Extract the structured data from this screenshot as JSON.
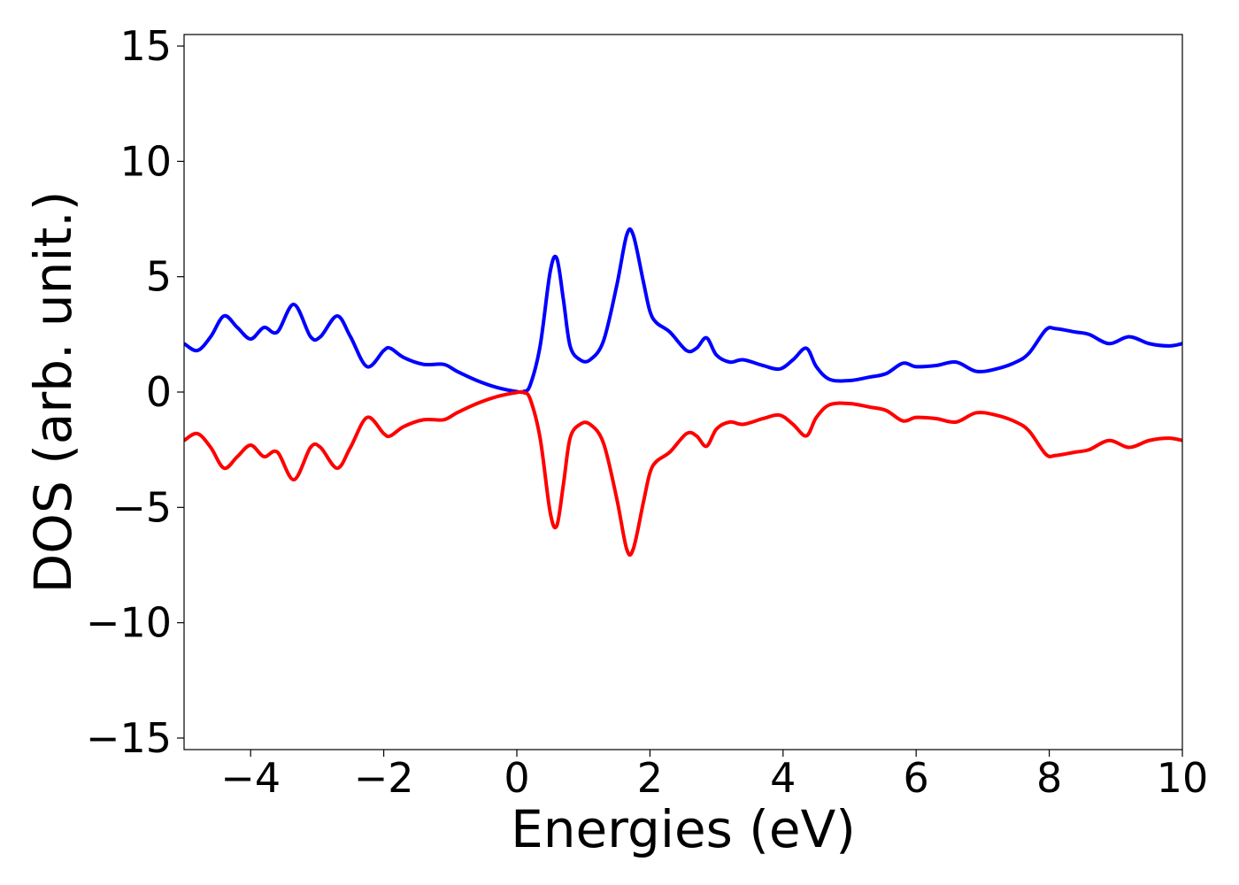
{
  "chart_data": {
    "type": "line",
    "title": "",
    "xlabel": "Energies (eV)",
    "ylabel": "DOS (arb. unit.)",
    "xlim": [
      -5,
      10
    ],
    "ylim": [
      -15.5,
      15.5
    ],
    "xticks": [
      -4,
      -2,
      0,
      2,
      4,
      6,
      8,
      10
    ],
    "xtick_labels": [
      "−4",
      "−2",
      "0",
      "2",
      "4",
      "6",
      "8",
      "10"
    ],
    "yticks": [
      -15,
      -10,
      -5,
      0,
      5,
      10,
      15
    ],
    "ytick_labels": [
      "−15",
      "−10",
      "−5",
      "0",
      "5",
      "10",
      "15"
    ],
    "grid": false,
    "legend": "none",
    "series": [
      {
        "color": "#0000ff",
        "x": [
          -5.0,
          -4.8,
          -4.6,
          -4.4,
          -4.2,
          -4.0,
          -3.8,
          -3.6,
          -3.35,
          -3.1,
          -2.95,
          -2.7,
          -2.5,
          -2.25,
          -2.0,
          -1.9,
          -1.7,
          -1.4,
          -1.1,
          -0.9,
          -0.6,
          -0.3,
          0.0,
          0.1,
          0.2,
          0.35,
          0.5,
          0.6,
          0.7,
          0.8,
          0.95,
          1.1,
          1.3,
          1.5,
          1.65,
          1.75,
          1.9,
          2.0,
          2.1,
          2.3,
          2.55,
          2.7,
          2.85,
          3.0,
          3.2,
          3.4,
          3.7,
          3.95,
          4.15,
          4.35,
          4.5,
          4.7,
          5.0,
          5.3,
          5.55,
          5.8,
          6.0,
          6.3,
          6.6,
          6.9,
          7.2,
          7.5,
          7.7,
          7.95,
          8.1,
          8.4,
          8.6,
          8.9,
          9.2,
          9.5,
          9.8,
          10.0
        ],
        "y": [
          2.1,
          1.8,
          2.4,
          3.3,
          2.8,
          2.3,
          2.8,
          2.6,
          3.8,
          2.4,
          2.4,
          3.3,
          2.4,
          1.1,
          1.8,
          1.9,
          1.5,
          1.2,
          1.2,
          0.9,
          0.5,
          0.2,
          0.02,
          0.02,
          0.3,
          2.0,
          5.2,
          5.8,
          4.0,
          2.0,
          1.4,
          1.4,
          2.2,
          4.6,
          6.8,
          6.8,
          4.8,
          3.5,
          3.0,
          2.6,
          1.8,
          1.9,
          2.35,
          1.6,
          1.3,
          1.4,
          1.15,
          1.0,
          1.4,
          1.9,
          1.1,
          0.55,
          0.5,
          0.65,
          0.8,
          1.25,
          1.1,
          1.15,
          1.3,
          0.9,
          1.0,
          1.3,
          1.7,
          2.7,
          2.75,
          2.6,
          2.5,
          2.1,
          2.4,
          2.1,
          2.0,
          2.1
        ]
      },
      {
        "color": "#ff0000",
        "x": [
          -5.0,
          -4.8,
          -4.6,
          -4.4,
          -4.2,
          -4.0,
          -3.8,
          -3.6,
          -3.35,
          -3.1,
          -2.95,
          -2.7,
          -2.5,
          -2.25,
          -2.0,
          -1.9,
          -1.7,
          -1.4,
          -1.1,
          -0.9,
          -0.6,
          -0.3,
          0.0,
          0.1,
          0.2,
          0.35,
          0.5,
          0.6,
          0.7,
          0.8,
          0.95,
          1.1,
          1.3,
          1.5,
          1.65,
          1.75,
          1.9,
          2.0,
          2.1,
          2.3,
          2.55,
          2.7,
          2.85,
          3.0,
          3.2,
          3.4,
          3.7,
          3.95,
          4.15,
          4.35,
          4.5,
          4.7,
          5.0,
          5.3,
          5.55,
          5.8,
          6.0,
          6.3,
          6.6,
          6.9,
          7.2,
          7.5,
          7.7,
          7.95,
          8.1,
          8.4,
          8.6,
          8.9,
          9.2,
          9.5,
          9.8,
          10.0
        ],
        "y": [
          -2.1,
          -1.8,
          -2.4,
          -3.3,
          -2.8,
          -2.3,
          -2.8,
          -2.6,
          -3.8,
          -2.4,
          -2.4,
          -3.3,
          -2.4,
          -1.1,
          -1.8,
          -1.9,
          -1.5,
          -1.2,
          -1.2,
          -0.9,
          -0.5,
          -0.2,
          -0.02,
          -0.02,
          -0.3,
          -2.0,
          -5.2,
          -5.8,
          -4.0,
          -2.0,
          -1.4,
          -1.4,
          -2.2,
          -4.6,
          -6.8,
          -6.8,
          -4.8,
          -3.5,
          -3.0,
          -2.6,
          -1.8,
          -1.9,
          -2.35,
          -1.6,
          -1.3,
          -1.4,
          -1.15,
          -1.0,
          -1.4,
          -1.9,
          -1.1,
          -0.55,
          -0.5,
          -0.65,
          -0.8,
          -1.25,
          -1.1,
          -1.15,
          -1.3,
          -0.9,
          -1.0,
          -1.3,
          -1.7,
          -2.7,
          -2.75,
          -2.6,
          -2.5,
          -2.1,
          -2.4,
          -2.1,
          -2.0,
          -2.1
        ]
      }
    ]
  }
}
